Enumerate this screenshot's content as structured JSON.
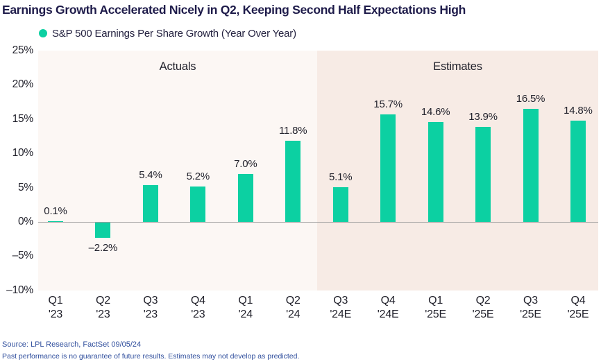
{
  "title": "Earnings Growth Accelerated Nicely in Q2, Keeping Second Half Expectations High",
  "legend": {
    "label": "S&P 500 Earnings Per Share Growth (Year Over Year)",
    "dot_color": "#0cd0a2"
  },
  "sections": {
    "actuals_label": "Actuals",
    "estimates_label": "Estimates"
  },
  "chart_data": {
    "type": "bar",
    "title": "Earnings Growth Accelerated Nicely in Q2, Keeping Second Half Expectations High",
    "series_name": "S&P 500 Earnings Per Share Growth (Year Over Year)",
    "categories": [
      "Q1 '23",
      "Q2 '23",
      "Q3 '23",
      "Q4 '23",
      "Q1 '24",
      "Q2 '24",
      "Q3 '24E",
      "Q4 '24E",
      "Q1 '25E",
      "Q2 '25E",
      "Q3 '25E",
      "Q4 '25E"
    ],
    "category_lines": [
      [
        "Q1",
        "'23"
      ],
      [
        "Q2",
        "'23"
      ],
      [
        "Q3",
        "'23"
      ],
      [
        "Q4",
        "'23"
      ],
      [
        "Q1",
        "'24"
      ],
      [
        "Q2",
        "'24"
      ],
      [
        "Q3",
        "'24E"
      ],
      [
        "Q4",
        "'24E"
      ],
      [
        "Q1",
        "'25E"
      ],
      [
        "Q2",
        "'25E"
      ],
      [
        "Q3",
        "'25E"
      ],
      [
        "Q4",
        "'25E"
      ]
    ],
    "values": [
      0.1,
      -2.2,
      5.4,
      5.2,
      7.0,
      11.8,
      5.1,
      15.7,
      14.6,
      13.9,
      16.5,
      14.8
    ],
    "value_labels": [
      "0.1%",
      "–2.2%",
      "5.4%",
      "5.2%",
      "7.0%",
      "11.8%",
      "5.1%",
      "15.7%",
      "14.6%",
      "13.9%",
      "16.5%",
      "14.8%"
    ],
    "section_split_index": 6,
    "ytick_labels": [
      "25%",
      "20%",
      "15%",
      "10%",
      "5%",
      "0%",
      "–5%",
      "–10%"
    ],
    "ytick_values": [
      25,
      20,
      15,
      10,
      5,
      0,
      -5,
      -10
    ],
    "ylim": [
      -10,
      25
    ],
    "grid": false,
    "legend_position": "top-left",
    "bar_color": "#0cd0a2",
    "actuals_bg": "#fcf7f4",
    "estimates_bg": "#f7ebe5"
  },
  "footer": {
    "source": "Source: LPL Research, FactSet 09/05/24",
    "disclaimer": "Past performance is no guarantee of future results. Estimates may not develop as predicted."
  }
}
